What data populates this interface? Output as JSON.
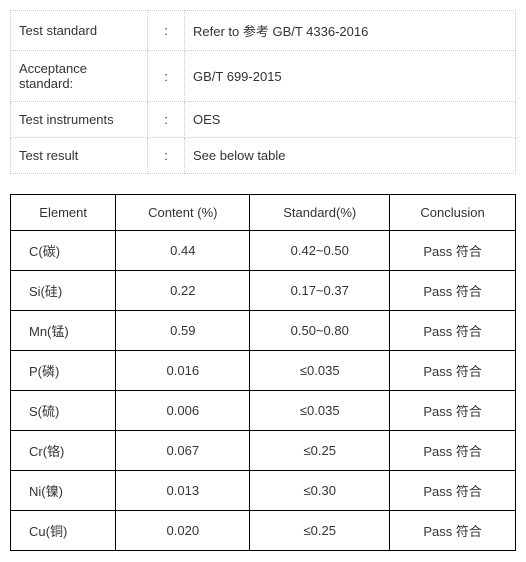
{
  "info": {
    "rows": [
      {
        "label": "Test standard",
        "value": "Refer to  参考 GB/T 4336-2016"
      },
      {
        "label": "Acceptance standard:",
        "value": "GB/T 699-2015"
      },
      {
        "label": "Test instruments",
        "value": "OES"
      },
      {
        "label": "Test result",
        "value": "See below table"
      }
    ]
  },
  "results": {
    "columns": [
      "Element",
      "Content (%)",
      "Standard(%)",
      "Conclusion"
    ],
    "rows": [
      {
        "element": "C(碳)",
        "content": "0.44",
        "standard": "0.42~0.50",
        "conclusion": "Pass 符合"
      },
      {
        "element": "Si(硅)",
        "content": "0.22",
        "standard": "0.17~0.37",
        "conclusion": "Pass 符合"
      },
      {
        "element": "Mn(锰)",
        "content": "0.59",
        "standard": "0.50~0.80",
        "conclusion": "Pass 符合"
      },
      {
        "element": "P(磷)",
        "content": "0.016",
        "standard": "≤0.035",
        "conclusion": "Pass 符合"
      },
      {
        "element": "S(硫)",
        "content": "0.006",
        "standard": "≤0.035",
        "conclusion": "Pass 符合"
      },
      {
        "element": "Cr(铬)",
        "content": "0.067",
        "standard": "≤0.25",
        "conclusion": "Pass 符合"
      },
      {
        "element": "Ni(镍)",
        "content": "0.013",
        "standard": "≤0.30",
        "conclusion": "Pass 符合"
      },
      {
        "element": "Cu(铜)",
        "content": "0.020",
        "standard": "≤0.25",
        "conclusion": "Pass 符合"
      }
    ]
  }
}
